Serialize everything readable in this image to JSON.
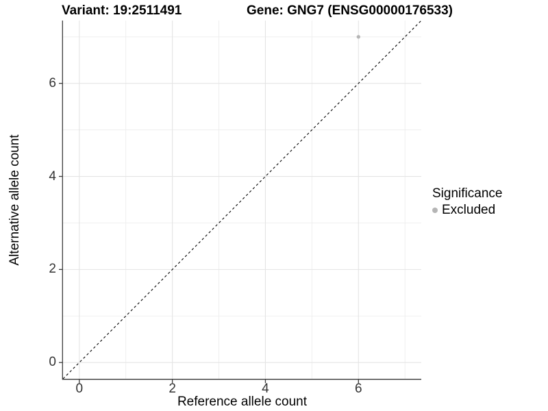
{
  "header": {
    "title_left": "Variant: 19:2511491",
    "title_right": "Gene: GNG7 (ENSG00000176533)"
  },
  "chart_data": {
    "type": "scatter",
    "title": "Variant: 19:2511491    Gene: GNG7 (ENSG00000176533)",
    "xlabel": "Reference allele count",
    "ylabel": "Alternative allele count",
    "xlim": [
      -0.35,
      7.35
    ],
    "ylim": [
      -0.35,
      7.35
    ],
    "x_major_ticks": [
      0,
      2,
      4,
      6
    ],
    "y_major_ticks": [
      0,
      2,
      4,
      6
    ],
    "x_minor_gridlines": [
      1,
      3,
      5,
      7
    ],
    "y_minor_gridlines": [
      1,
      3,
      5,
      7
    ],
    "grid": "major and minor gridlines on white background",
    "reference_line": {
      "kind": "y=x identity",
      "style": "dashed",
      "color": "#000000"
    },
    "series": [
      {
        "name": "Excluded",
        "color": "#b5b5b5",
        "points": [
          [
            6,
            7
          ]
        ]
      }
    ],
    "legend": {
      "title": "Significance",
      "position": "right",
      "items": [
        {
          "label": "Excluded",
          "color": "#b5b5b5"
        }
      ]
    },
    "colors": {
      "grid_major": "#e4e4e4",
      "grid_minor": "#ededed",
      "axis": "#3a3a3a",
      "tick_label": "#333333",
      "point": "#b5b5b5"
    }
  }
}
